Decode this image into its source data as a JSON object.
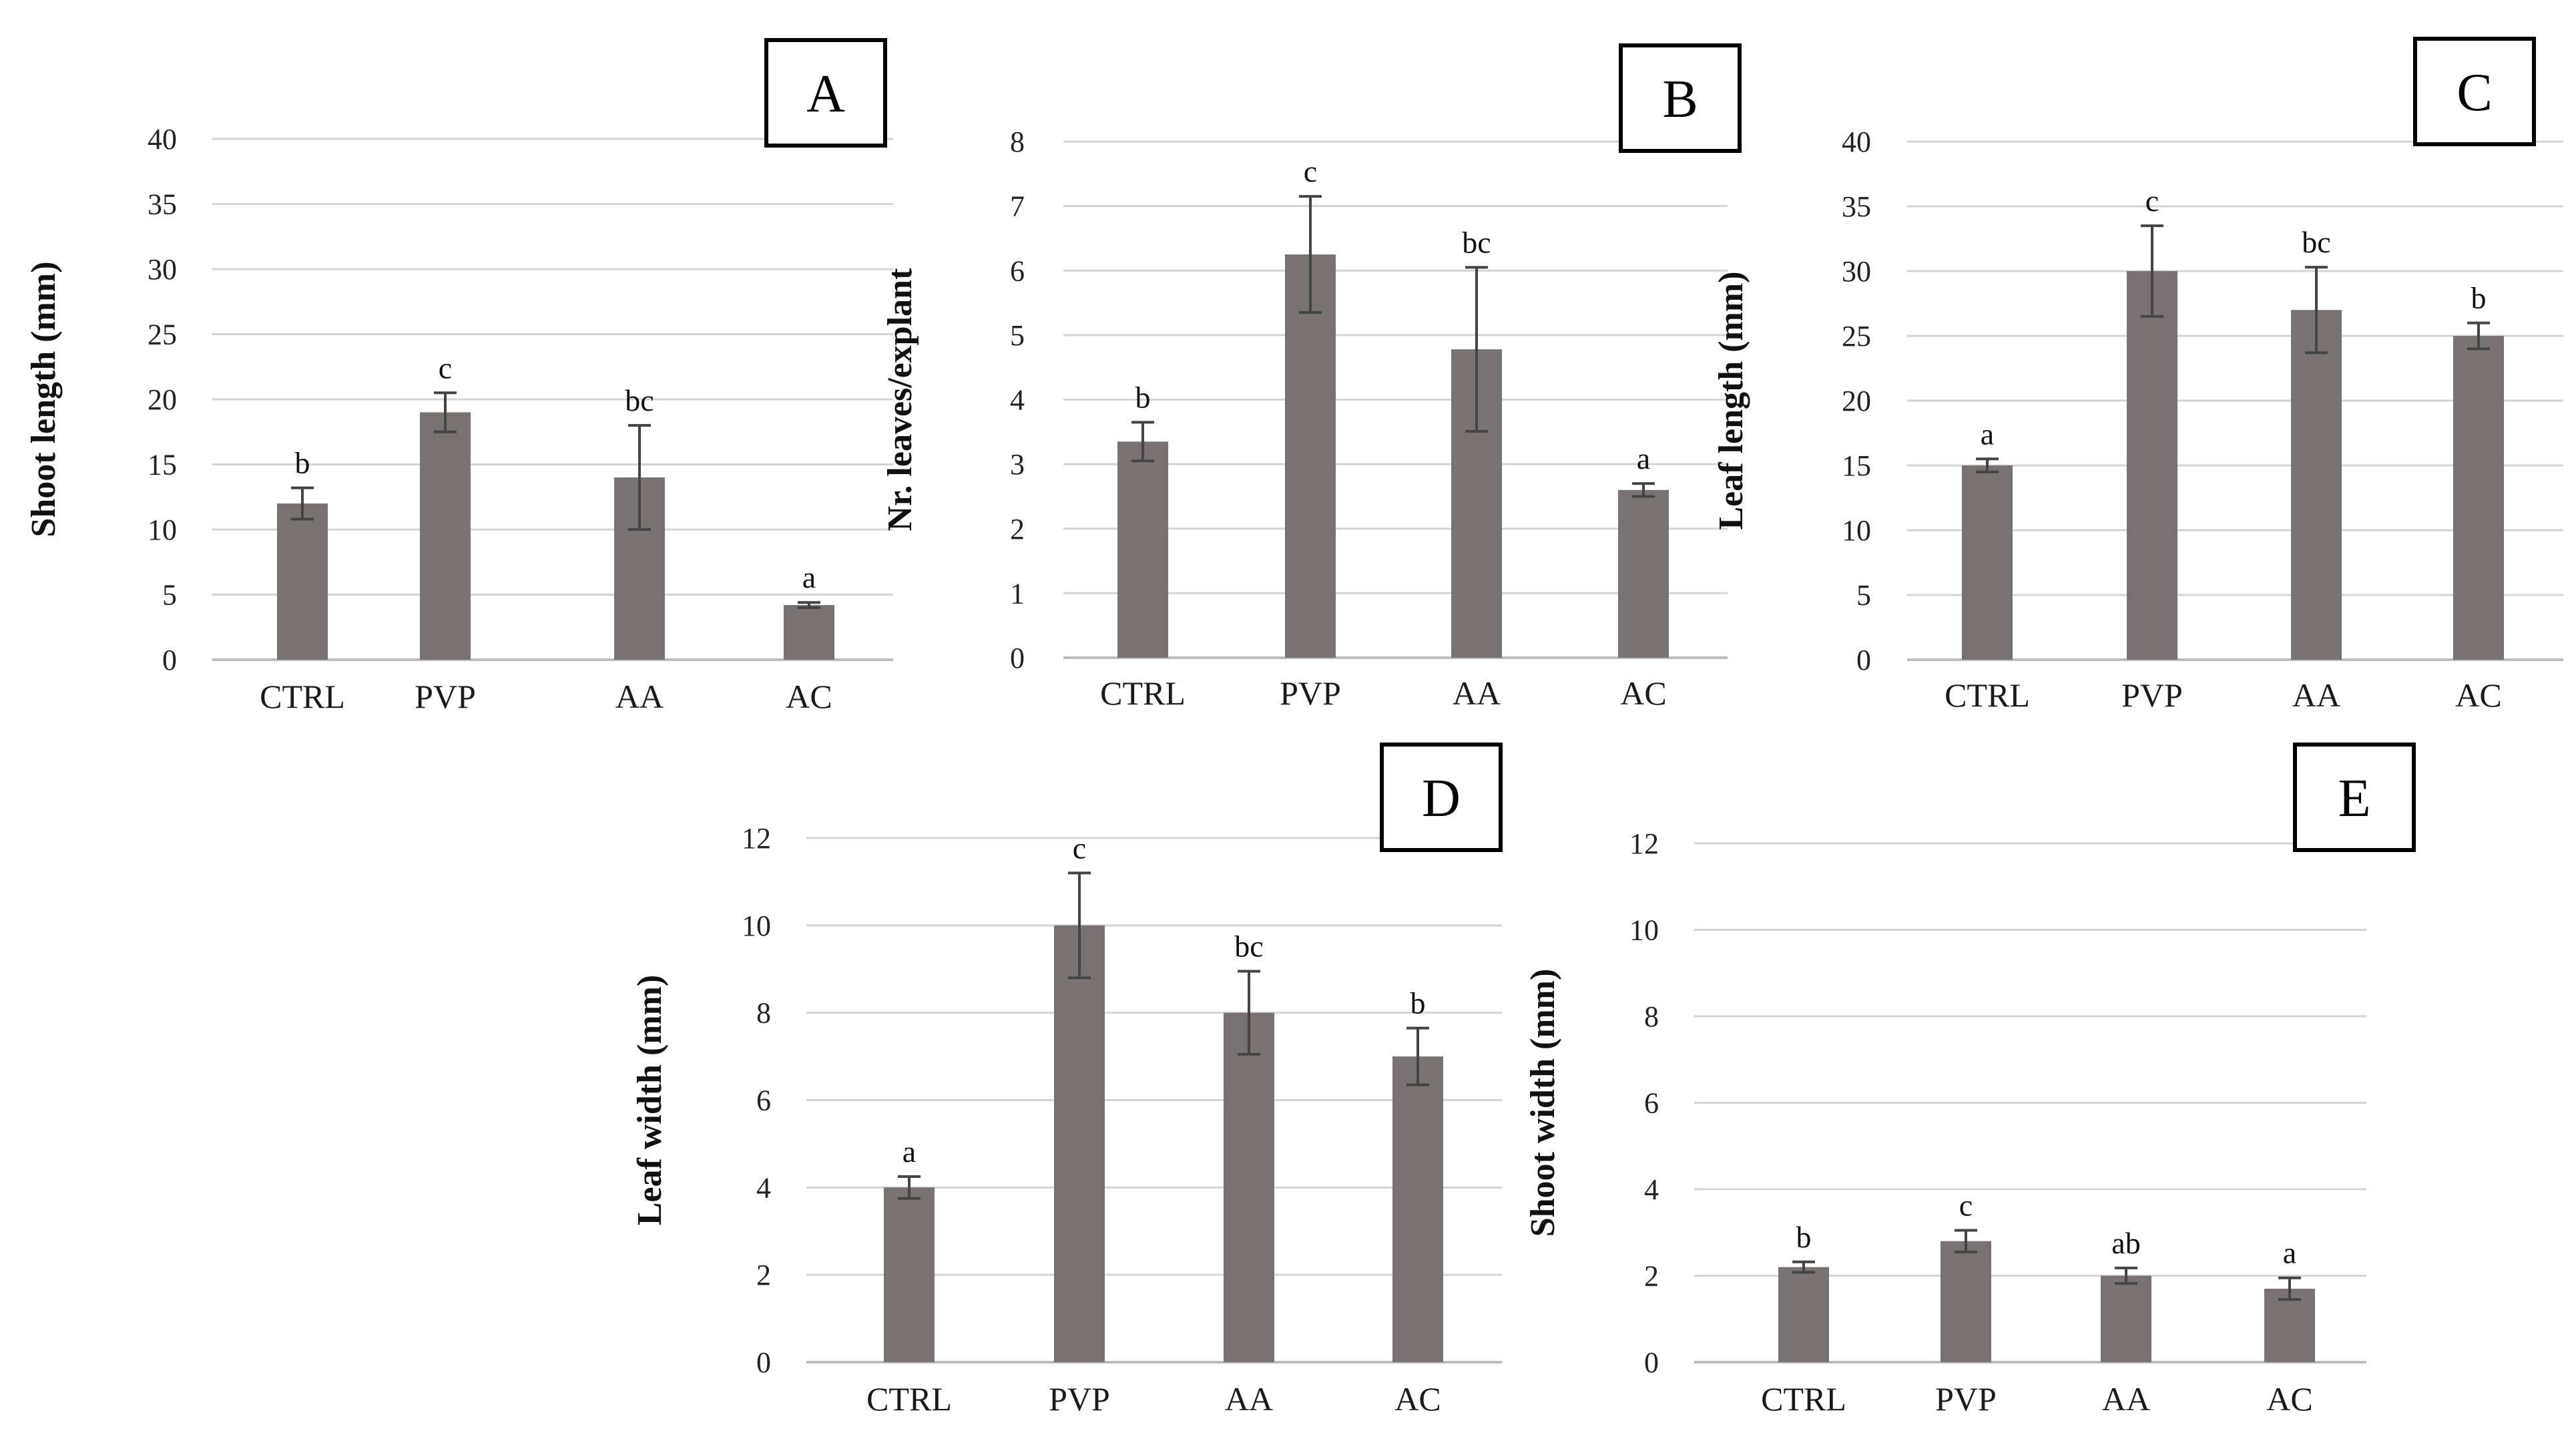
{
  "colors": {
    "bar": "#787272",
    "gridline": "#d4d4d4",
    "axis": "#bdbdbd",
    "error_bar": "#444444",
    "panel_border": "#000000"
  },
  "chart_data": [
    {
      "type": "bar",
      "panel_label": "A",
      "categories": [
        "CTRL",
        "PVP",
        "AA",
        "AC"
      ],
      "values": [
        12,
        19,
        14,
        4.2
      ],
      "errors": [
        1.2,
        1.5,
        4,
        0.2
      ],
      "significance": [
        "b",
        "c",
        "bc",
        "a"
      ],
      "ylabel": "Shoot length (mm)",
      "ylim": [
        0,
        40
      ],
      "yticks": [
        "0",
        "5",
        "10",
        "15",
        "20",
        "25",
        "30",
        "35",
        "40"
      ]
    },
    {
      "type": "bar",
      "panel_label": "B",
      "categories": [
        "CTRL",
        "PVP",
        "AA",
        "AC"
      ],
      "values": [
        3.35,
        6.25,
        4.78,
        2.6
      ],
      "errors": [
        0.3,
        0.9,
        1.27,
        0.1
      ],
      "significance": [
        "b",
        "c",
        "bc",
        "a"
      ],
      "ylabel": "Nr. leaves/explant",
      "ylim": [
        0,
        8
      ],
      "yticks": [
        "0",
        "1",
        "2",
        "3",
        "4",
        "5",
        "6",
        "7",
        "8"
      ]
    },
    {
      "type": "bar",
      "panel_label": "C",
      "categories": [
        "CTRL",
        "PVP",
        "AA",
        "AC"
      ],
      "values": [
        15,
        30,
        27,
        25
      ],
      "errors": [
        0.5,
        3.5,
        3.3,
        1
      ],
      "significance": [
        "a",
        "c",
        "bc",
        "b"
      ],
      "ylabel": "Leaf length (mm)",
      "ylim": [
        0,
        40
      ],
      "yticks": [
        "0",
        "5",
        "10",
        "15",
        "20",
        "25",
        "30",
        "35",
        "40"
      ]
    },
    {
      "type": "bar",
      "panel_label": "D",
      "categories": [
        "CTRL",
        "PVP",
        "AA",
        "AC"
      ],
      "values": [
        4,
        10,
        8,
        7
      ],
      "errors": [
        0.25,
        1.2,
        0.95,
        0.65
      ],
      "significance": [
        "a",
        "c",
        "bc",
        "b"
      ],
      "ylabel": "Leaf width (mm)",
      "ylim": [
        0,
        12
      ],
      "yticks": [
        "0",
        "2",
        "4",
        "6",
        "8",
        "10",
        "12"
      ]
    },
    {
      "type": "bar",
      "panel_label": "E",
      "categories": [
        "CTRL",
        "PVP",
        "AA",
        "AC"
      ],
      "values": [
        2.2,
        2.8,
        2,
        1.7
      ],
      "errors": [
        0.12,
        0.25,
        0.18,
        0.25
      ],
      "significance": [
        "b",
        "c",
        "ab",
        "a"
      ],
      "ylabel": "Shoot width (mm)",
      "ylim": [
        0,
        12
      ],
      "yticks": [
        "0",
        "2",
        "4",
        "6",
        "8",
        "10",
        "12"
      ]
    }
  ]
}
